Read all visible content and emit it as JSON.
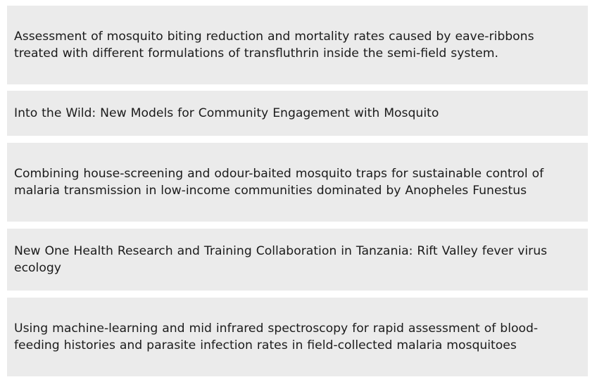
{
  "items": [
    {
      "title": "Assessment of mosquito biting reduction and mortality rates caused by eave-ribbons treated with different formulations of transfluthrin inside the semi-field system."
    },
    {
      "title": "Into the Wild: New Models for Community Engagement with Mosquito"
    },
    {
      "title": "Combining house-screening and odour-baited mosquito traps for sustainable control of malaria transmission in low-income communities dominated by Anopheles Funestus"
    },
    {
      "title": "New One Health Research and Training Collaboration in Tanzania: Rift Valley fever virus ecology"
    },
    {
      "title": "Using machine-learning and mid infrared spectroscopy for rapid assessment of blood-feeding histories and parasite infection rates in field-collected malaria mosquitoes"
    }
  ]
}
